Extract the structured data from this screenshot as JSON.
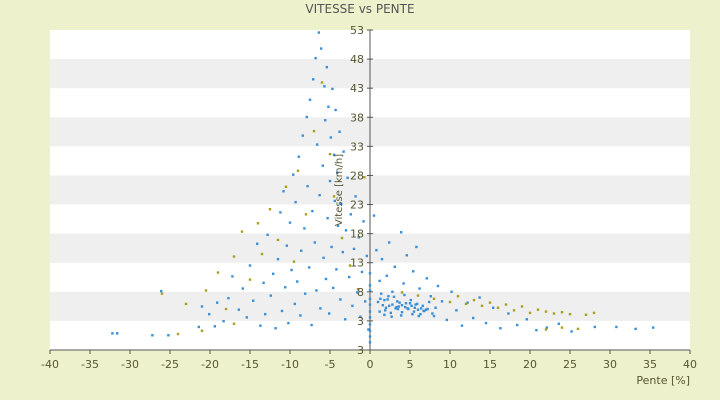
{
  "chart_data": {
    "type": "scatter",
    "title": "VITESSE vs PENTE",
    "xlabel": "Pente [%]",
    "ylabel": "Vitesse [km/h]",
    "xlim": [
      -40,
      40
    ],
    "ylim": [
      3,
      53
    ],
    "x_ticks": [
      "-40",
      "-35",
      "-30",
      "-25",
      "-20",
      "-15",
      "-10",
      "-5",
      "0",
      "5",
      "10",
      "15",
      "20",
      "25",
      "30",
      "35",
      "40"
    ],
    "y_ticks": [
      "3",
      "3",
      "8",
      "13",
      "18",
      "23",
      "28",
      "33",
      "38",
      "43",
      "48",
      "53"
    ],
    "grid": "horizontal-bands",
    "colors": {
      "blue": "#3a8fd6",
      "olive": "#a8a018",
      "plot_bg": "#ffffff",
      "band": "#efefef",
      "page_bg": "#eef2cc"
    },
    "series": [
      {
        "color": "blue",
        "points": [
          [
            -31.6,
            5.6
          ],
          [
            -32.2,
            5.6
          ],
          [
            -27.2,
            5.3
          ],
          [
            -26.1,
            12.2
          ],
          [
            -25.2,
            5.3
          ],
          [
            -21.4,
            6.6
          ],
          [
            -21.0,
            9.8
          ],
          [
            -20.1,
            8.6
          ],
          [
            -19.4,
            6.7
          ],
          [
            -19.1,
            10.4
          ],
          [
            -18.3,
            7.5
          ],
          [
            -17.7,
            11.1
          ],
          [
            -17.2,
            14.5
          ],
          [
            -16.4,
            9.3
          ],
          [
            -15.9,
            12.6
          ],
          [
            -15.4,
            8.1
          ],
          [
            -15.0,
            16.2
          ],
          [
            -14.6,
            10.7
          ],
          [
            -14.1,
            19.6
          ],
          [
            -13.7,
            6.8
          ],
          [
            -13.3,
            13.5
          ],
          [
            -13.1,
            8.6
          ],
          [
            -12.8,
            21.0
          ],
          [
            -12.4,
            11.5
          ],
          [
            -12.1,
            14.9
          ],
          [
            -11.8,
            6.4
          ],
          [
            -11.5,
            17.2
          ],
          [
            -11.2,
            24.5
          ],
          [
            -11.0,
            9.1
          ],
          [
            -10.8,
            27.8
          ],
          [
            -10.6,
            12.8
          ],
          [
            -10.4,
            19.3
          ],
          [
            -10.2,
            7.2
          ],
          [
            -10.0,
            22.9
          ],
          [
            -9.8,
            15.5
          ],
          [
            -9.6,
            30.4
          ],
          [
            -9.4,
            10.2
          ],
          [
            -9.3,
            26.1
          ],
          [
            -9.1,
            13.7
          ],
          [
            -8.9,
            33.2
          ],
          [
            -8.7,
            8.4
          ],
          [
            -8.6,
            18.5
          ],
          [
            -8.4,
            36.5
          ],
          [
            -8.2,
            22.0
          ],
          [
            -8.1,
            11.8
          ],
          [
            -7.9,
            39.4
          ],
          [
            -7.8,
            28.6
          ],
          [
            -7.6,
            15.9
          ],
          [
            -7.5,
            42.1
          ],
          [
            -7.3,
            6.9
          ],
          [
            -7.2,
            24.7
          ],
          [
            -7.1,
            45.3
          ],
          [
            -6.9,
            19.8
          ],
          [
            -6.8,
            48.6
          ],
          [
            -6.7,
            12.3
          ],
          [
            -6.6,
            35.1
          ],
          [
            -6.4,
            52.6
          ],
          [
            -6.3,
            27.2
          ],
          [
            -6.2,
            9.5
          ],
          [
            -6.1,
            50.1
          ],
          [
            -5.9,
            31.8
          ],
          [
            -5.8,
            17.4
          ],
          [
            -5.7,
            44.2
          ],
          [
            -5.6,
            38.9
          ],
          [
            -5.5,
            14.1
          ],
          [
            -5.4,
            47.2
          ],
          [
            -5.3,
            23.6
          ],
          [
            -5.2,
            41.0
          ],
          [
            -5.1,
            8.7
          ],
          [
            -5.0,
            29.4
          ],
          [
            -4.9,
            36.2
          ],
          [
            -4.8,
            19.1
          ],
          [
            -4.7,
            43.8
          ],
          [
            -4.6,
            12.7
          ],
          [
            -4.5,
            33.5
          ],
          [
            -4.4,
            26.3
          ],
          [
            -4.3,
            40.5
          ],
          [
            -4.2,
            15.6
          ],
          [
            -4.1,
            30.7
          ],
          [
            -4.0,
            22.4
          ],
          [
            -3.8,
            37.1
          ],
          [
            -3.7,
            10.9
          ],
          [
            -3.6,
            25.8
          ],
          [
            -3.4,
            18.3
          ],
          [
            -3.3,
            34.0
          ],
          [
            -3.1,
            7.8
          ],
          [
            -3.0,
            21.7
          ],
          [
            -2.8,
            29.9
          ],
          [
            -2.6,
            14.4
          ],
          [
            -2.4,
            24.2
          ],
          [
            -2.2,
            9.9
          ],
          [
            -2.0,
            18.8
          ],
          [
            -1.8,
            27.0
          ],
          [
            -1.6,
            12.0
          ],
          [
            -1.4,
            20.6
          ],
          [
            -1.2,
            8.2
          ],
          [
            -1.0,
            15.2
          ],
          [
            -0.8,
            23.1
          ],
          [
            -0.6,
            10.6
          ],
          [
            -0.4,
            17.7
          ],
          [
            -0.2,
            6.2
          ],
          [
            0.0,
            4.2
          ],
          [
            0.0,
            5.1
          ],
          [
            0.0,
            6.0
          ],
          [
            0.0,
            7.0
          ],
          [
            0.0,
            8.1
          ],
          [
            0.0,
            9.0
          ],
          [
            0.0,
            10.1
          ],
          [
            0.0,
            11.0
          ],
          [
            0.0,
            12.3
          ],
          [
            0.0,
            13.1
          ],
          [
            0.0,
            15.0
          ],
          [
            0.5,
            24.0
          ],
          [
            0.8,
            18.6
          ],
          [
            1.2,
            13.8
          ],
          [
            1.5,
            17.2
          ],
          [
            1.8,
            10.8
          ],
          [
            2.1,
            14.6
          ],
          [
            2.4,
            19.8
          ],
          [
            2.8,
            12.1
          ],
          [
            3.1,
            16.0
          ],
          [
            3.5,
            9.4
          ],
          [
            3.9,
            21.4
          ],
          [
            4.2,
            13.4
          ],
          [
            4.6,
            17.8
          ],
          [
            5.0,
            10.3
          ],
          [
            5.4,
            15.3
          ],
          [
            5.8,
            19.1
          ],
          [
            6.2,
            12.6
          ],
          [
            6.7,
            9.1
          ],
          [
            7.1,
            14.2
          ],
          [
            7.6,
            11.4
          ],
          [
            8.0,
            8.3
          ],
          [
            8.5,
            13.0
          ],
          [
            9.0,
            10.6
          ],
          [
            9.6,
            7.7
          ],
          [
            10.2,
            12.1
          ],
          [
            10.8,
            9.2
          ],
          [
            11.5,
            6.8
          ],
          [
            12.2,
            10.4
          ],
          [
            12.9,
            8.0
          ],
          [
            13.7,
            11.2
          ],
          [
            14.5,
            7.2
          ],
          [
            15.4,
            9.6
          ],
          [
            16.3,
            6.4
          ],
          [
            17.3,
            8.7
          ],
          [
            18.4,
            6.9
          ],
          [
            19.6,
            7.8
          ],
          [
            20.8,
            6.1
          ],
          [
            22.1,
            6.5
          ],
          [
            23.6,
            7.1
          ],
          [
            25.2,
            5.9
          ],
          [
            28.1,
            6.6
          ],
          [
            30.8,
            6.6
          ],
          [
            33.2,
            6.3
          ],
          [
            35.4,
            6.5
          ],
          [
            1.0,
            10.5
          ],
          [
            1.4,
            11.8
          ],
          [
            1.9,
            9.2
          ],
          [
            2.2,
            10.9
          ],
          [
            2.6,
            8.8
          ],
          [
            3.0,
            11.3
          ],
          [
            3.3,
            9.7
          ],
          [
            3.7,
            10.4
          ],
          [
            4.0,
            8.9
          ],
          [
            4.3,
            11.6
          ],
          [
            4.7,
            9.5
          ],
          [
            5.1,
            10.8
          ],
          [
            5.5,
            9.0
          ],
          [
            5.9,
            10.2
          ],
          [
            6.3,
            8.6
          ],
          [
            6.6,
            9.9
          ],
          [
            7.0,
            9.3
          ],
          [
            7.4,
            10.5
          ],
          [
            7.8,
            8.7
          ],
          [
            8.2,
            9.6
          ],
          [
            1.2,
            9.0
          ],
          [
            1.6,
            10.0
          ],
          [
            2.0,
            9.6
          ],
          [
            2.4,
            9.9
          ],
          [
            2.8,
            10.1
          ],
          [
            3.2,
            9.5
          ],
          [
            3.6,
            9.8
          ],
          [
            4.0,
            10.0
          ],
          [
            4.4,
            9.7
          ],
          [
            4.8,
            9.4
          ],
          [
            5.2,
            9.9
          ],
          [
            5.6,
            9.6
          ],
          [
            6.0,
            9.3
          ],
          [
            6.4,
            9.5
          ],
          [
            6.8,
            9.1
          ],
          [
            7.2,
            9.4
          ],
          [
            1.3,
            11.0
          ],
          [
            1.8,
            8.5
          ],
          [
            2.3,
            11.4
          ],
          [
            2.7,
            8.2
          ],
          [
            3.4,
            10.6
          ],
          [
            3.9,
            8.4
          ],
          [
            4.5,
            10.3
          ],
          [
            5.3,
            8.6
          ],
          [
            5.7,
            10.1
          ],
          [
            6.1,
            8.3
          ]
        ]
      },
      {
        "color": "olive",
        "points": [
          [
            -26.0,
            11.8
          ],
          [
            -23.0,
            10.2
          ],
          [
            -20.5,
            12.3
          ],
          [
            -19.0,
            15.1
          ],
          [
            -18.0,
            9.4
          ],
          [
            -17.0,
            17.6
          ],
          [
            -16.0,
            21.5
          ],
          [
            -15.0,
            14.0
          ],
          [
            -14.0,
            22.8
          ],
          [
            -13.5,
            18.0
          ],
          [
            -12.5,
            25.0
          ],
          [
            -11.5,
            20.2
          ],
          [
            -10.5,
            28.5
          ],
          [
            -9.5,
            16.8
          ],
          [
            -9.0,
            31.0
          ],
          [
            -8.0,
            24.2
          ],
          [
            -7.0,
            37.2
          ],
          [
            -6.0,
            44.8
          ],
          [
            -5.0,
            33.6
          ],
          [
            -4.5,
            27.0
          ],
          [
            -3.5,
            20.5
          ],
          [
            -2.5,
            16.2
          ],
          [
            -1.5,
            12.5
          ],
          [
            -0.7,
            30.0
          ],
          [
            4.0,
            12.0
          ],
          [
            6.0,
            11.5
          ],
          [
            8.0,
            11.0
          ],
          [
            10.0,
            10.5
          ],
          [
            11.0,
            11.4
          ],
          [
            12.0,
            10.2
          ],
          [
            13.0,
            10.8
          ],
          [
            14.0,
            9.9
          ],
          [
            15.0,
            10.4
          ],
          [
            16.0,
            9.6
          ],
          [
            17.0,
            10.1
          ],
          [
            18.0,
            9.2
          ],
          [
            19.0,
            9.8
          ],
          [
            20.0,
            8.8
          ],
          [
            21.0,
            9.3
          ],
          [
            22.0,
            9.0
          ],
          [
            23.0,
            8.7
          ],
          [
            24.0,
            8.9
          ],
          [
            25.0,
            8.6
          ],
          [
            27.0,
            8.5
          ],
          [
            28.0,
            8.8
          ],
          [
            22.0,
            6.2
          ],
          [
            24.0,
            6.5
          ],
          [
            26.0,
            6.3
          ],
          [
            -24.0,
            5.5
          ],
          [
            -21.0,
            6.0
          ],
          [
            -17.0,
            7.1
          ]
        ]
      }
    ]
  }
}
